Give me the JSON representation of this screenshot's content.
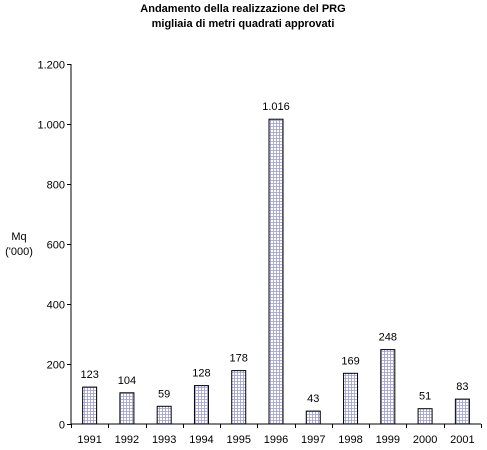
{
  "chart_data": {
    "type": "bar",
    "title": "Andamento della realizzazione del PRG",
    "subtitle": "migliaia di metri quadrati approvati",
    "ylabel": "Mq",
    "ylabel_unit": "('000)",
    "xlabel": "",
    "categories": [
      "1991",
      "1992",
      "1993",
      "1994",
      "1995",
      "1996",
      "1997",
      "1998",
      "1999",
      "2000",
      "2001"
    ],
    "values": [
      123,
      104,
      59,
      128,
      178,
      1016,
      43,
      169,
      248,
      51,
      83
    ],
    "value_labels": [
      "123",
      "104",
      "59",
      "128",
      "178",
      "1.016",
      "43",
      "169",
      "248",
      "51",
      "83"
    ],
    "ylim": [
      0,
      1200
    ],
    "yticks": [
      0,
      200,
      400,
      600,
      800,
      1000,
      1200
    ],
    "ytick_labels": [
      "0",
      "200",
      "400",
      "600",
      "800",
      "1.000",
      "1.200"
    ],
    "grid": false,
    "legend": "none",
    "bar_fill": "#ffffff",
    "bar_pattern_color": "#9a9ad0",
    "bar_stroke": "#000000"
  }
}
